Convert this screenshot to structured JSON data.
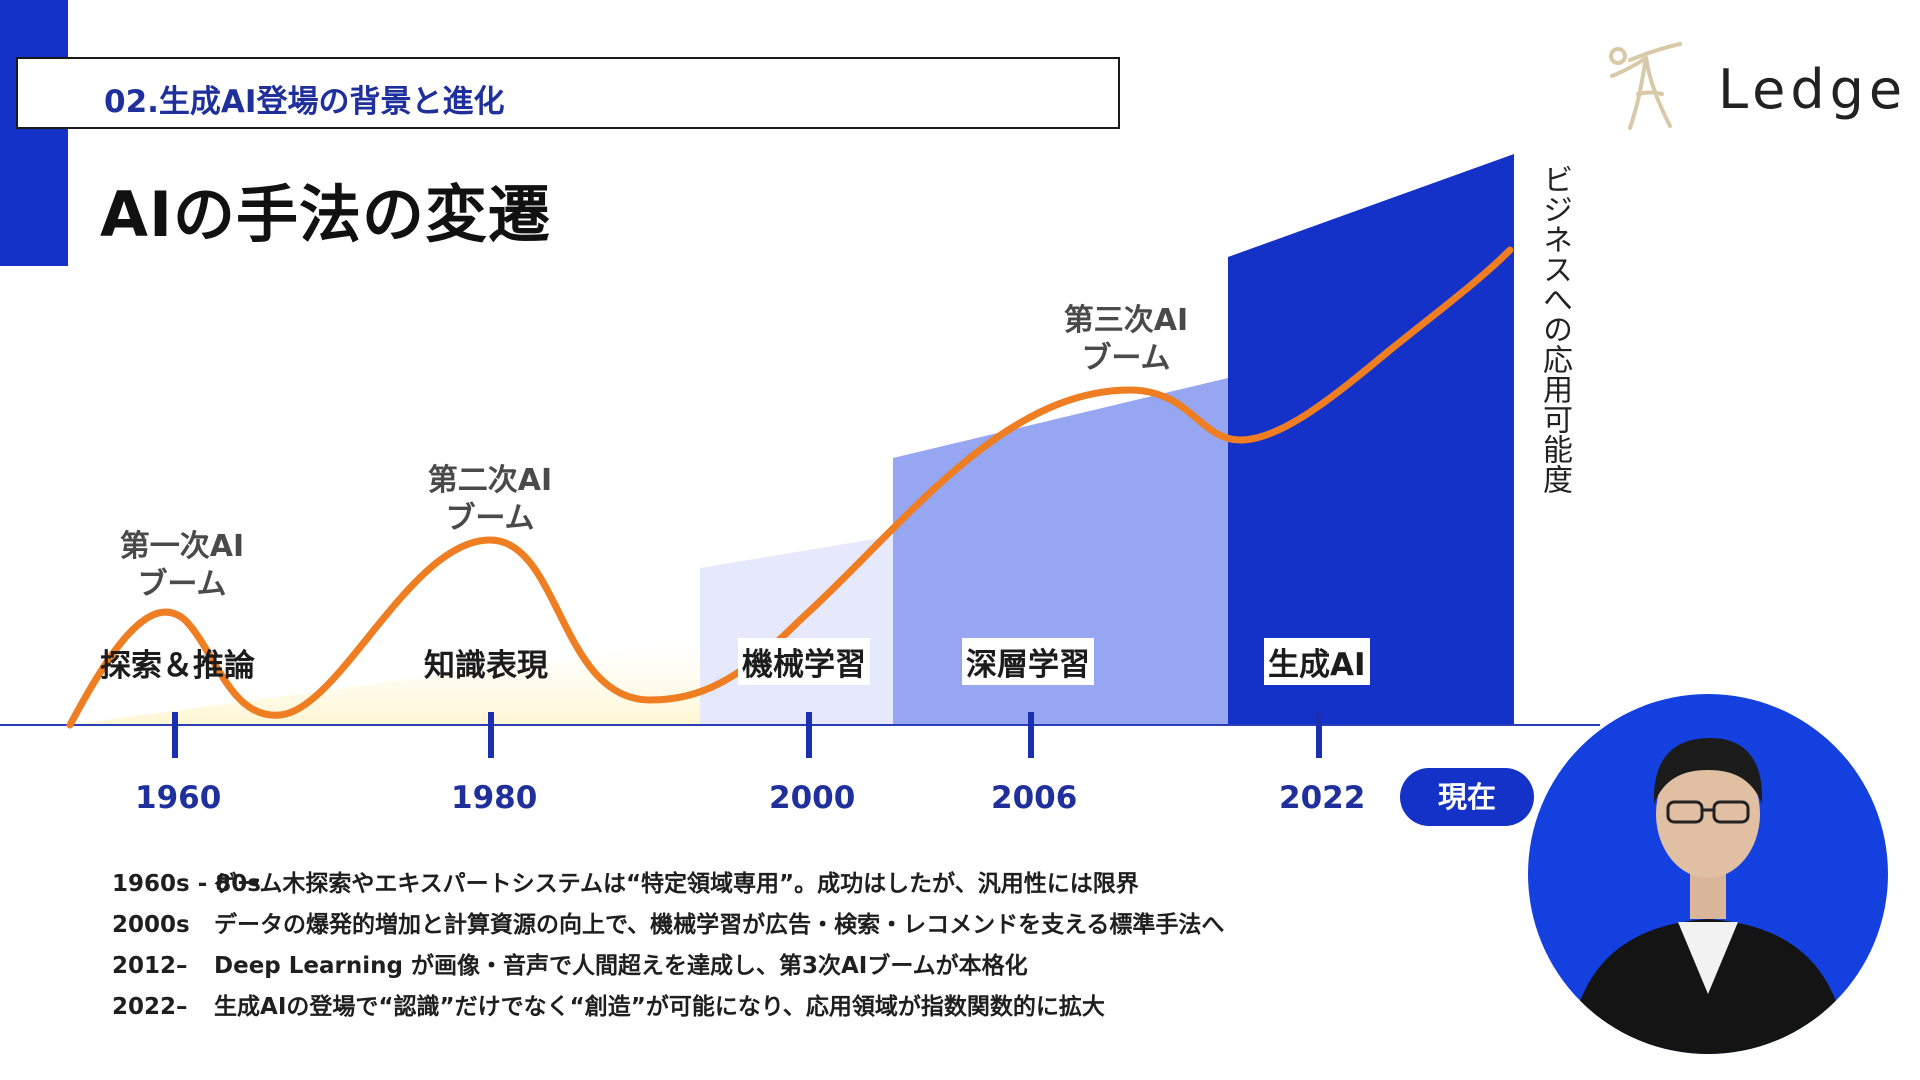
{
  "header": {
    "section_label": "02.生成AI登場の背景と進化",
    "title": "AIの手法の変遷"
  },
  "logo": {
    "text": "Ledge",
    "icon": "figure-logo-icon"
  },
  "diagram": {
    "vertical_label": "ビジネスへの応用可能度",
    "booms": [
      {
        "line1": "第一次AI",
        "line2": "ブーム"
      },
      {
        "line1": "第二次AI",
        "line2": "ブーム"
      },
      {
        "line1": "第三次AI",
        "line2": "ブーム"
      }
    ],
    "methods": [
      "探索＆推論",
      "知識表現",
      "機械学習",
      "深層学習",
      "生成AI"
    ],
    "years": [
      "1960",
      "1980",
      "2000",
      "2006",
      "2022"
    ],
    "now_label": "現在",
    "colors": {
      "curve": "#ef7d22",
      "stage_ml": "#e6e8fb",
      "stage_dl": "#96a6f0",
      "stage_genai": "#1432c8",
      "axis": "#1a30b0"
    }
  },
  "notes": [
    {
      "year": "1960s - 80s",
      "text": "ゲーム木探索やエキスパートシステムは“特定領域専用”。成功はしたが、汎用性には限界"
    },
    {
      "year": "2000s",
      "text": "データの爆発的増加と計算資源の向上で、機械学習が広告・検索・レコメンドを支える標準手法へ"
    },
    {
      "year": "2012–",
      "text": "Deep Learning が画像・音声で人間超えを達成し、第3次AIブームが本格化"
    },
    {
      "year": "2022–",
      "text": "生成AIの登場で“認識”だけでなく“創造”が可能になり、応用領域が指数関数的に拡大"
    }
  ],
  "presenter": {
    "icon": "presenter-avatar-icon"
  }
}
